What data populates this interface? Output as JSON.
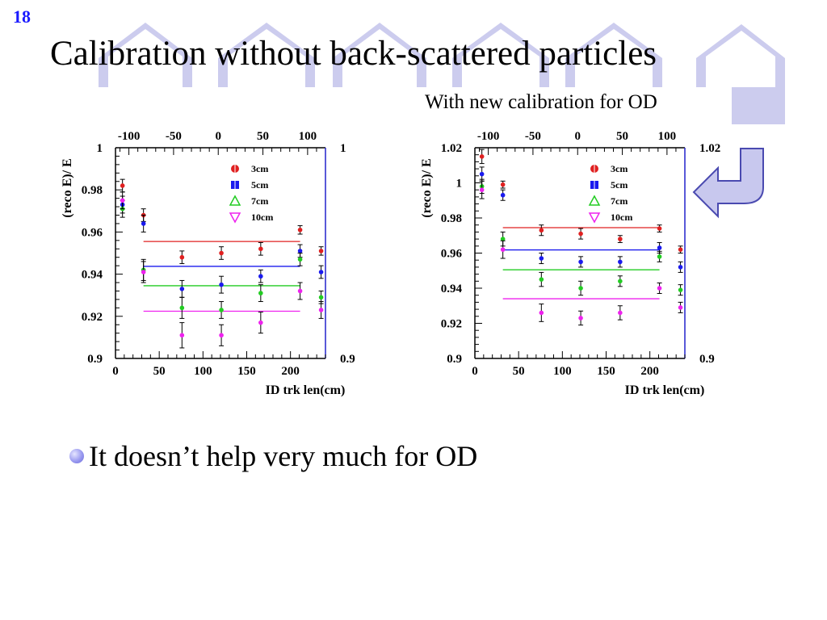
{
  "slide": {
    "number": "18",
    "title": "Calibration without back-scattered particles",
    "subtitle": "With new calibration for OD",
    "bullet": "It doesn’t help very much for OD"
  },
  "colors": {
    "accent": "#1a1aff",
    "decor": "#ccccee",
    "arrow_fill": "#c8c8ee",
    "arrow_stroke": "#4a4ab0",
    "frame": "#000000",
    "frame_right": "#2222cc"
  },
  "chart_data": [
    {
      "type": "scatter",
      "xlabel": "ID trk len(cm)",
      "ylabel": "(reco E)/ E",
      "xlim": [
        0,
        240
      ],
      "ylim": [
        0.9,
        1.0
      ],
      "x_ticks": [
        "0",
        "50",
        "100",
        "150",
        "200"
      ],
      "x_tick_values": [
        0,
        50,
        100,
        150,
        200
      ],
      "top_ticks": [
        "-100",
        "-50",
        "0",
        "50",
        "100"
      ],
      "top_tick_values": [
        -100,
        -50,
        0,
        50,
        100
      ],
      "top_xlim": [
        -115,
        120
      ],
      "y_ticks": [
        "0.9",
        "0.92",
        "0.94",
        "0.96",
        "0.98",
        "1"
      ],
      "y_tick_values": [
        0.9,
        0.92,
        0.94,
        0.96,
        0.98,
        1.0
      ],
      "right_ticks": [
        "1",
        "0.9"
      ],
      "right_tick_values": [
        1.0,
        0.9
      ],
      "legend_position": "top-right",
      "series": [
        {
          "name": "3cm",
          "color": "#e02020",
          "marker": "circle",
          "x": [
            8,
            32,
            76,
            121,
            166,
            211,
            235
          ],
          "y": [
            0.982,
            0.968,
            0.948,
            0.95,
            0.952,
            0.961,
            0.951
          ],
          "err": [
            0.003,
            0.003,
            0.003,
            0.003,
            0.003,
            0.002,
            0.002
          ],
          "fit": {
            "x": [
              32,
              211
            ],
            "y": 0.9555
          }
        },
        {
          "name": "5cm",
          "color": "#1a1aee",
          "marker": "square",
          "x": [
            8,
            32,
            76,
            121,
            166,
            211,
            235
          ],
          "y": [
            0.973,
            0.964,
            0.933,
            0.935,
            0.939,
            0.951,
            0.941
          ],
          "err": [
            0.004,
            0.004,
            0.004,
            0.004,
            0.003,
            0.003,
            0.003
          ],
          "fit": {
            "x": [
              32,
              211
            ],
            "y": 0.9437
          }
        },
        {
          "name": "7cm",
          "color": "#22cc22",
          "marker": "triangle-up",
          "x": [
            8,
            32,
            76,
            121,
            166,
            211,
            235
          ],
          "y": [
            0.971,
            0.942,
            0.924,
            0.923,
            0.931,
            0.947,
            0.929
          ],
          "err": [
            0.004,
            0.005,
            0.005,
            0.004,
            0.004,
            0.003,
            0.003
          ],
          "fit": {
            "x": [
              32,
              211
            ],
            "y": 0.9345
          }
        },
        {
          "name": "10cm",
          "color": "#ee22ee",
          "marker": "triangle-down",
          "x": [
            8,
            32,
            76,
            121,
            166,
            211,
            235
          ],
          "y": [
            0.975,
            0.941,
            0.911,
            0.911,
            0.917,
            0.932,
            0.923
          ],
          "err": [
            0.004,
            0.005,
            0.006,
            0.005,
            0.005,
            0.004,
            0.004
          ],
          "fit": {
            "x": [
              32,
              211
            ],
            "y": 0.9224
          }
        }
      ]
    },
    {
      "type": "scatter",
      "xlabel": "ID trk len(cm)",
      "ylabel": "(reco E)/ E",
      "xlim": [
        0,
        240
      ],
      "ylim": [
        0.9,
        1.02
      ],
      "x_ticks": [
        "0",
        "50",
        "100",
        "150",
        "200"
      ],
      "x_tick_values": [
        0,
        50,
        100,
        150,
        200
      ],
      "top_ticks": [
        "-100",
        "-50",
        "0",
        "50",
        "100"
      ],
      "top_tick_values": [
        -100,
        -50,
        0,
        50,
        100
      ],
      "top_xlim": [
        -115,
        120
      ],
      "y_ticks": [
        "0.9",
        "0.92",
        "0.94",
        "0.96",
        "0.98",
        "1",
        "1.02"
      ],
      "y_tick_values": [
        0.9,
        0.92,
        0.94,
        0.96,
        0.98,
        1.0,
        1.02
      ],
      "right_ticks": [
        "1.02",
        "0.9"
      ],
      "right_tick_values": [
        1.02,
        0.9
      ],
      "legend_position": "top-right",
      "series": [
        {
          "name": "3cm",
          "color": "#e02020",
          "marker": "circle",
          "x": [
            8,
            32,
            76,
            121,
            166,
            211,
            235
          ],
          "y": [
            1.015,
            0.999,
            0.973,
            0.971,
            0.968,
            0.974,
            0.962
          ],
          "err": [
            0.004,
            0.002,
            0.003,
            0.003,
            0.002,
            0.002,
            0.002
          ],
          "fit": {
            "x": [
              32,
              211
            ],
            "y": 0.9745
          }
        },
        {
          "name": "5cm",
          "color": "#1a1aee",
          "marker": "square",
          "x": [
            8,
            32,
            76,
            121,
            166,
            211,
            235
          ],
          "y": [
            1.005,
            0.993,
            0.957,
            0.955,
            0.955,
            0.963,
            0.952
          ],
          "err": [
            0.004,
            0.003,
            0.003,
            0.003,
            0.003,
            0.003,
            0.003
          ],
          "fit": {
            "x": [
              32,
              211
            ],
            "y": 0.9618
          }
        },
        {
          "name": "7cm",
          "color": "#22cc22",
          "marker": "triangle-up",
          "x": [
            8,
            32,
            76,
            121,
            166,
            211,
            235
          ],
          "y": [
            0.998,
            0.968,
            0.945,
            0.94,
            0.944,
            0.958,
            0.939
          ],
          "err": [
            0.004,
            0.004,
            0.004,
            0.004,
            0.003,
            0.003,
            0.003
          ],
          "fit": {
            "x": [
              32,
              211
            ],
            "y": 0.9505
          }
        },
        {
          "name": "10cm",
          "color": "#ee22ee",
          "marker": "triangle-down",
          "x": [
            8,
            32,
            76,
            121,
            166,
            211,
            235
          ],
          "y": [
            0.996,
            0.962,
            0.926,
            0.923,
            0.926,
            0.94,
            0.929
          ],
          "err": [
            0.005,
            0.005,
            0.005,
            0.004,
            0.004,
            0.003,
            0.003
          ],
          "fit": {
            "x": [
              32,
              211
            ],
            "y": 0.934
          }
        }
      ]
    }
  ]
}
